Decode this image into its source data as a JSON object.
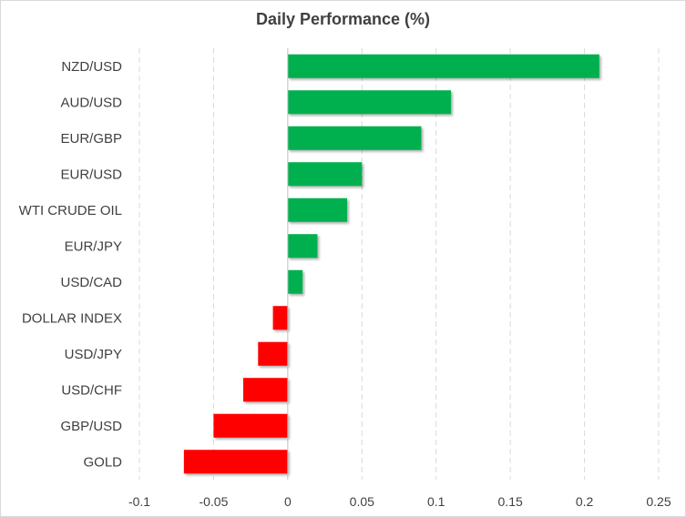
{
  "chart_data": {
    "type": "bar",
    "orientation": "horizontal",
    "title": "Daily Performance (%)",
    "xlabel": "",
    "ylabel": "",
    "categories": [
      "NZD/USD",
      "AUD/USD",
      "EUR/GBP",
      "EUR/USD",
      "WTI CRUDE OIL",
      "EUR/JPY",
      "USD/CAD",
      "DOLLAR INDEX",
      "USD/JPY",
      "USD/CHF",
      "GBP/USD",
      "GOLD"
    ],
    "values": [
      0.21,
      0.11,
      0.09,
      0.05,
      0.04,
      0.02,
      0.01,
      -0.01,
      -0.02,
      -0.03,
      -0.05,
      -0.07
    ],
    "xlim": [
      -0.1,
      0.25
    ],
    "xticks": [
      -0.1,
      -0.05,
      0,
      0.05,
      0.1,
      0.15,
      0.2,
      0.25
    ],
    "xtick_labels": [
      "-0.1",
      "-0.05",
      "0",
      "0.05",
      "0.1",
      "0.15",
      "0.2",
      "0.25"
    ],
    "grid": "vertical-dashed",
    "legend": "none",
    "colors": {
      "positive": "#00b050",
      "negative": "#ff0000",
      "grid": "#d9d9d9",
      "text": "#404040"
    }
  }
}
